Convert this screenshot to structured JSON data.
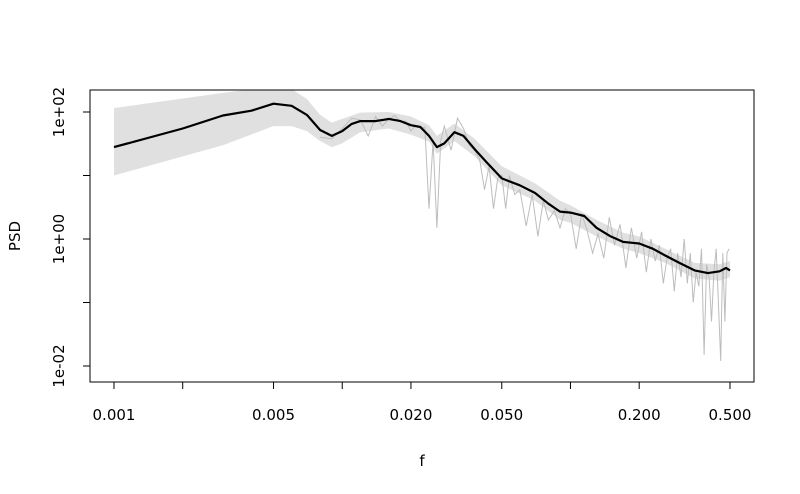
{
  "chart_data": {
    "type": "line",
    "xlabel": "f",
    "ylabel": "PSD",
    "x_scale": "log",
    "y_scale": "log",
    "xlim": [
      0.001,
      0.5
    ],
    "ylim": [
      0.01,
      200
    ],
    "x_ticks": [
      {
        "value": 0.001,
        "label": "0.001"
      },
      {
        "value": 0.002,
        "label": ""
      },
      {
        "value": 0.005,
        "label": "0.005"
      },
      {
        "value": 0.01,
        "label": ""
      },
      {
        "value": 0.02,
        "label": "0.020"
      },
      {
        "value": 0.05,
        "label": "0.050"
      },
      {
        "value": 0.1,
        "label": ""
      },
      {
        "value": 0.2,
        "label": "0.200"
      },
      {
        "value": 0.5,
        "label": "0.500"
      }
    ],
    "y_ticks": [
      {
        "value": 0.01,
        "label": "1e-02"
      },
      {
        "value": 0.1,
        "label": ""
      },
      {
        "value": 1,
        "label": "1e+00"
      },
      {
        "value": 10,
        "label": ""
      },
      {
        "value": 100,
        "label": "1e+02"
      }
    ],
    "colors": {
      "estimate": "#000000",
      "raw": "#bdbdbd",
      "band": "#e0e0e0"
    },
    "series": [
      {
        "role": "estimate",
        "x": [
          0.001,
          0.002,
          0.003,
          0.004,
          0.005,
          0.006,
          0.007,
          0.008,
          0.009,
          0.01,
          0.011,
          0.012,
          0.014,
          0.016,
          0.018,
          0.02,
          0.022,
          0.024,
          0.026,
          0.028,
          0.031,
          0.034,
          0.038,
          0.043,
          0.05,
          0.06,
          0.07,
          0.08,
          0.09,
          0.1,
          0.115,
          0.13,
          0.15,
          0.17,
          0.2,
          0.23,
          0.26,
          0.3,
          0.35,
          0.4,
          0.45,
          0.48,
          0.5
        ],
        "y": [
          28,
          55,
          88,
          105,
          135,
          125,
          90,
          52,
          42,
          50,
          65,
          72,
          72,
          78,
          72,
          62,
          58,
          42,
          28,
          32,
          48,
          42,
          26,
          16,
          9,
          7,
          5.3,
          3.6,
          2.7,
          2.6,
          2.3,
          1.5,
          1.1,
          0.9,
          0.85,
          0.7,
          0.55,
          0.42,
          0.32,
          0.29,
          0.31,
          0.35,
          0.32
        ]
      },
      {
        "role": "raw",
        "x": [
          0.008,
          0.009,
          0.01,
          0.011,
          0.012,
          0.013,
          0.014,
          0.015,
          0.016,
          0.017,
          0.018,
          0.019,
          0.02,
          0.021,
          0.022,
          0.023,
          0.024,
          0.025,
          0.026,
          0.027,
          0.028,
          0.029,
          0.03,
          0.032,
          0.034,
          0.036,
          0.038,
          0.04,
          0.042,
          0.044,
          0.046,
          0.048,
          0.05,
          0.052,
          0.054,
          0.057,
          0.06,
          0.064,
          0.068,
          0.072,
          0.076,
          0.08,
          0.085,
          0.09,
          0.095,
          0.1,
          0.106,
          0.112,
          0.118,
          0.125,
          0.132,
          0.14,
          0.148,
          0.156,
          0.165,
          0.175,
          0.185,
          0.195,
          0.205,
          0.215,
          0.225,
          0.235,
          0.245,
          0.255,
          0.265,
          0.275,
          0.285,
          0.295,
          0.305,
          0.315,
          0.325,
          0.335,
          0.345,
          0.355,
          0.365,
          0.375,
          0.385,
          0.395,
          0.405,
          0.415,
          0.425,
          0.435,
          0.445,
          0.455,
          0.465,
          0.475,
          0.485,
          0.495
        ],
        "y": [
          40,
          38,
          55,
          80,
          75,
          42,
          85,
          60,
          78,
          88,
          70,
          72,
          50,
          62,
          55,
          58,
          3,
          35,
          1.5,
          35,
          60,
          38,
          25,
          80,
          55,
          30,
          25,
          18,
          6,
          14,
          3,
          9,
          10,
          3,
          10,
          5,
          6,
          1.6,
          5,
          1.1,
          4,
          2,
          2.8,
          1.5,
          3,
          2.5,
          0.7,
          2.5,
          1.4,
          0.6,
          1.2,
          0.5,
          2.2,
          0.8,
          1.7,
          0.35,
          1.5,
          0.5,
          1.3,
          0.3,
          1.0,
          0.45,
          0.8,
          0.2,
          0.5,
          0.7,
          0.15,
          0.6,
          0.25,
          1.0,
          0.2,
          0.6,
          0.1,
          0.3,
          0.18,
          0.7,
          0.015,
          0.4,
          0.25,
          0.05,
          0.3,
          0.7,
          0.1,
          0.012,
          0.6,
          0.05,
          0.6,
          0.7
        ]
      },
      {
        "role": "band",
        "x": [
          0.001,
          0.003,
          0.005,
          0.006,
          0.007,
          0.008,
          0.009,
          0.01,
          0.012,
          0.016,
          0.02,
          0.024,
          0.026,
          0.031,
          0.038,
          0.05,
          0.07,
          0.09,
          0.1,
          0.13,
          0.17,
          0.2,
          0.26,
          0.35,
          0.45,
          0.5
        ],
        "y_upper": [
          115,
          200,
          250,
          230,
          160,
          90,
          68,
          78,
          98,
          100,
          85,
          62,
          42,
          66,
          38,
          14,
          7.5,
          4,
          3.4,
          2,
          1.25,
          1.1,
          0.7,
          0.42,
          0.4,
          0.45
        ],
        "y_lower": [
          10,
          30,
          60,
          60,
          50,
          35,
          28,
          32,
          48,
          55,
          44,
          34,
          22,
          35,
          20,
          7,
          4,
          2,
          1.8,
          1.1,
          0.7,
          0.6,
          0.42,
          0.24,
          0.22,
          0.25
        ]
      }
    ]
  }
}
